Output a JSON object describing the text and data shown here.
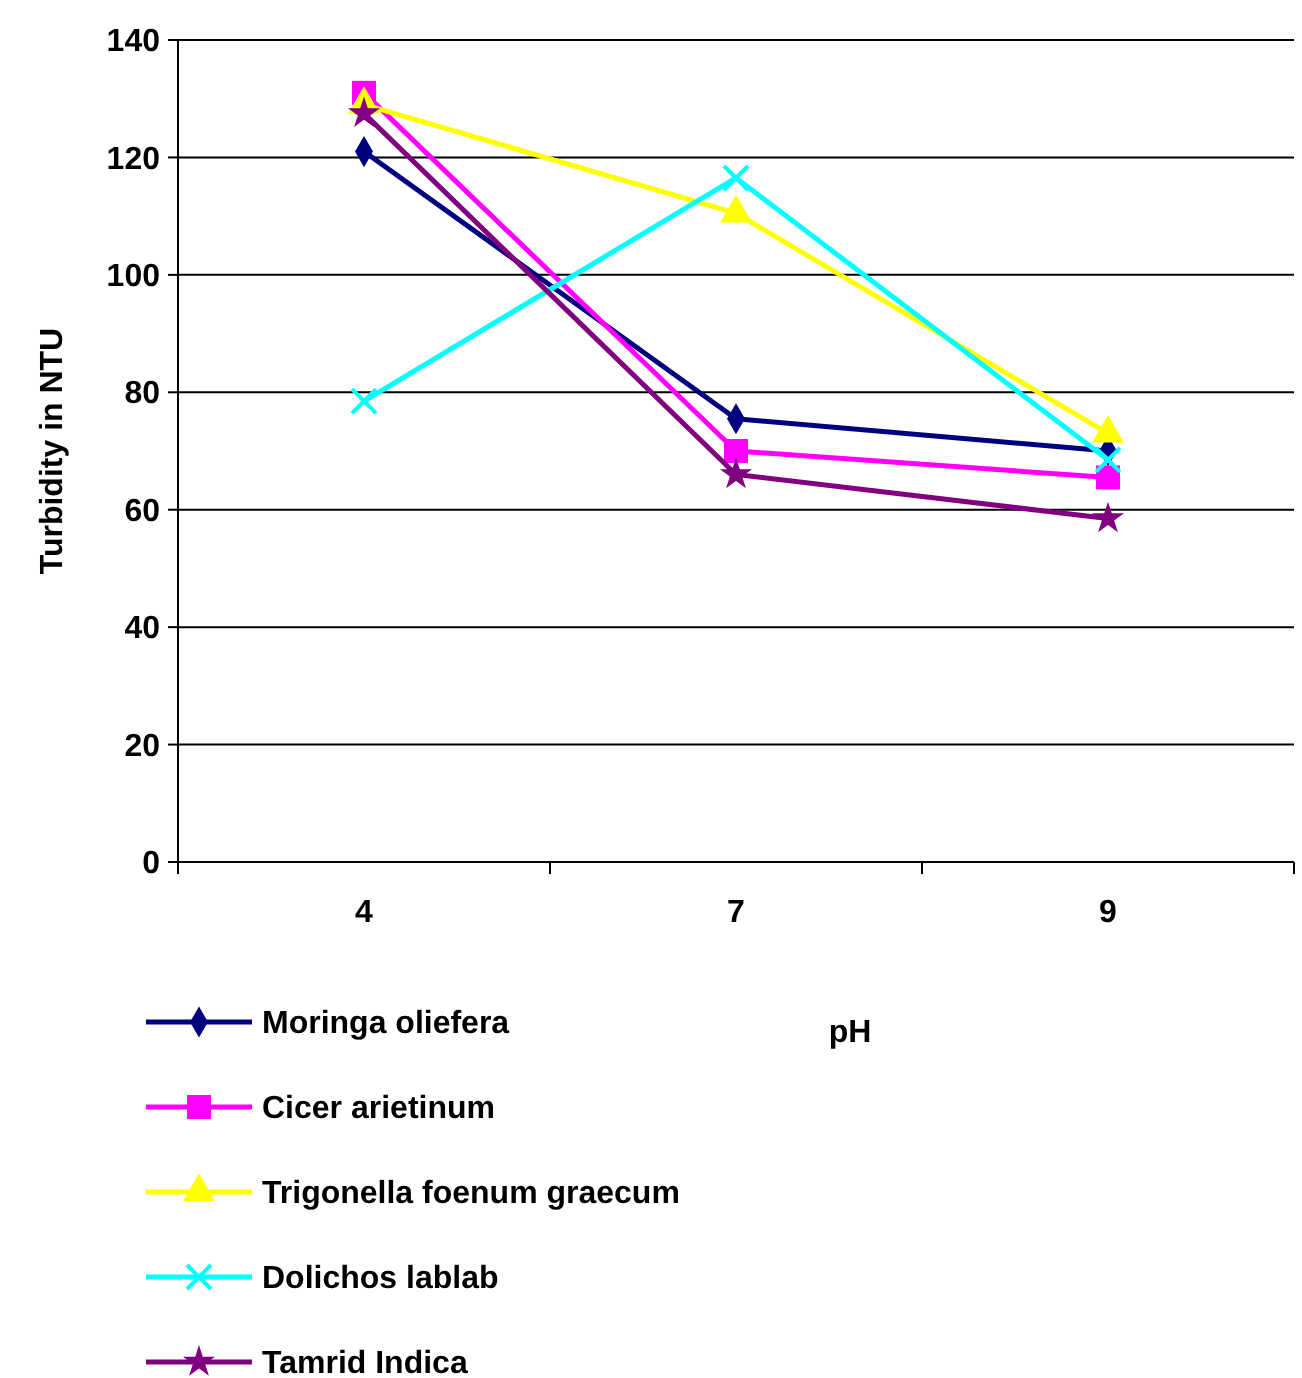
{
  "chart_data": {
    "type": "line",
    "xlabel": "pH",
    "ylabel": "Turbidity in NTU",
    "categories": [
      "4",
      "7",
      "9"
    ],
    "ylim": [
      0,
      140
    ],
    "yticks": [
      0,
      20,
      40,
      60,
      80,
      100,
      120,
      140
    ],
    "grid": "y",
    "legend": "bottom",
    "series": [
      {
        "name": "Moringa oliefera",
        "color": "#000080",
        "marker": "diamond",
        "values": [
          121,
          75.5,
          70
        ]
      },
      {
        "name": "Cicer arietinum",
        "color": "#ff00ff",
        "marker": "square",
        "values": [
          131,
          70,
          65.5
        ]
      },
      {
        "name": "Trigonella foenum graecum",
        "color": "#ffff00",
        "marker": "triangle",
        "values": [
          129,
          110.5,
          73
        ]
      },
      {
        "name": "Dolichos lablab",
        "color": "#00ffff",
        "marker": "cross",
        "values": [
          78.5,
          116.5,
          68.5
        ]
      },
      {
        "name": "Tamrid Indica",
        "color": "#800080",
        "marker": "star",
        "values": [
          127.5,
          66,
          58.5
        ]
      }
    ]
  }
}
